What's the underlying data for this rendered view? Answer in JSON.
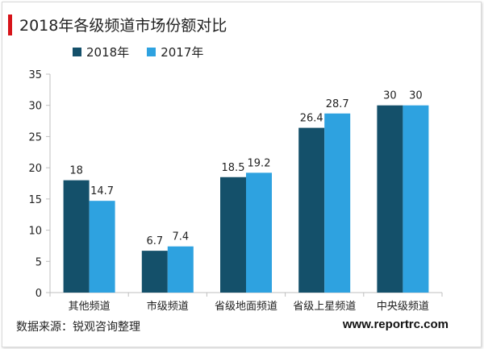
{
  "colors": {
    "s2018": "#14506a",
    "s2017": "#2ea2e0",
    "accent": "#d7141a",
    "axis": "#bfbfbf",
    "text": "#222222"
  },
  "chart_data": {
    "type": "bar",
    "title": "2018年各级频道市场份额对比",
    "categories": [
      "其他频道",
      "市级频道",
      "省级地面频道",
      "省级上星频道",
      "中央级频道"
    ],
    "series": [
      {
        "name": "2018年",
        "values": [
          18,
          6.7,
          18.5,
          26.4,
          30
        ],
        "labels": [
          "18",
          "6.7",
          "18.5",
          "26.4",
          "30"
        ]
      },
      {
        "name": "2017年",
        "values": [
          14.7,
          7.4,
          19.2,
          28.7,
          30
        ],
        "labels": [
          "14.7",
          "7.4",
          "19.2",
          "28.7",
          "30"
        ]
      }
    ],
    "ylim": [
      0,
      35
    ],
    "yticks": [
      0,
      5,
      10,
      15,
      20,
      25,
      30,
      35
    ],
    "ytick_labels": [
      "0",
      "5",
      "10",
      "15",
      "20",
      "25",
      "30",
      "35"
    ],
    "xlabel": "",
    "ylabel": "",
    "grid": false,
    "legend": "top-left"
  },
  "footer": {
    "source": "数据来源：锐观咨询整理",
    "site": "www.reportrc.com"
  }
}
